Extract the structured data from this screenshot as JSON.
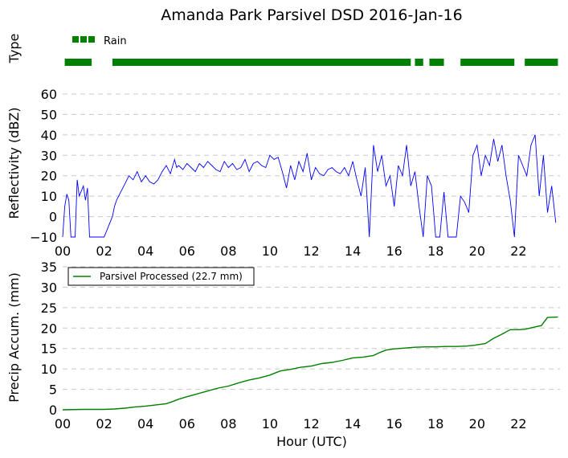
{
  "title": "Amanda Park Parsivel DSD 2016-Jan-16",
  "colors": {
    "rain": "#008000",
    "reflectivity": "#0000ff",
    "accum": "#008000",
    "grid": "#c8c8c8"
  },
  "chart_data": [
    {
      "type": "bar",
      "name": "precip_type",
      "ylabel": "Type",
      "legend": [
        "Rain"
      ],
      "legend_placement": "top-left",
      "xlim": [
        0,
        24
      ],
      "rain_intervals": [
        [
          0.1,
          1.4
        ],
        [
          2.4,
          16.8
        ],
        [
          17.0,
          17.4
        ],
        [
          17.7,
          18.4
        ],
        [
          19.2,
          21.8
        ],
        [
          22.3,
          23.9
        ]
      ]
    },
    {
      "type": "line",
      "name": "reflectivity",
      "ylabel": "Reflectivity (dBZ)",
      "xlim": [
        0,
        24
      ],
      "ylim": [
        -10,
        60
      ],
      "yticks": [
        "60",
        "50",
        "40",
        "30",
        "20",
        "10",
        "0",
        "−10"
      ],
      "grid": true,
      "series": [
        {
          "x": [
            0.0,
            0.1,
            0.2,
            0.3,
            0.4,
            0.6,
            0.7,
            0.8,
            1.0,
            1.1,
            1.2,
            1.3,
            1.4,
            1.5,
            2.0,
            2.4,
            2.5,
            2.6,
            2.8,
            3.0,
            3.2,
            3.4,
            3.6,
            3.8,
            4.0,
            4.2,
            4.4,
            4.6,
            4.8,
            5.0,
            5.2,
            5.4,
            5.5,
            5.6,
            5.8,
            6.0,
            6.2,
            6.4,
            6.6,
            6.8,
            7.0,
            7.2,
            7.4,
            7.6,
            7.8,
            8.0,
            8.2,
            8.4,
            8.6,
            8.8,
            9.0,
            9.2,
            9.4,
            9.6,
            9.8,
            10.0,
            10.2,
            10.4,
            10.6,
            10.8,
            11.0,
            11.2,
            11.4,
            11.6,
            11.8,
            12.0,
            12.2,
            12.4,
            12.6,
            12.8,
            13.0,
            13.2,
            13.4,
            13.6,
            13.8,
            14.0,
            14.2,
            14.4,
            14.6,
            14.8,
            15.0,
            15.2,
            15.4,
            15.6,
            15.8,
            16.0,
            16.2,
            16.4,
            16.6,
            16.8,
            17.0,
            17.2,
            17.4,
            17.6,
            17.8,
            18.0,
            18.2,
            18.4,
            18.6,
            19.0,
            19.2,
            19.4,
            19.6,
            19.8,
            20.0,
            20.2,
            20.4,
            20.6,
            20.8,
            21.0,
            21.2,
            21.4,
            21.6,
            21.8,
            22.0,
            22.2,
            22.4,
            22.6,
            22.8,
            23.0,
            23.2,
            23.4,
            23.6,
            23.8
          ],
          "y": [
            -10,
            5,
            11,
            8,
            -10,
            -10,
            18,
            10,
            15,
            8,
            14,
            -10,
            -10,
            -10,
            -10,
            0,
            5,
            8,
            12,
            16,
            20,
            18,
            22,
            17,
            20,
            17,
            16,
            18,
            22,
            25,
            21,
            28,
            24,
            25,
            23,
            26,
            24,
            22,
            26,
            24,
            27,
            25,
            23,
            22,
            27,
            24,
            26,
            23,
            24,
            28,
            22,
            26,
            27,
            25,
            24,
            30,
            28,
            29,
            22,
            14,
            25,
            18,
            27,
            22,
            31,
            18,
            24,
            21,
            20,
            23,
            24,
            22,
            21,
            24,
            20,
            27,
            18,
            10,
            24,
            -10,
            35,
            22,
            30,
            15,
            20,
            5,
            25,
            20,
            35,
            15,
            22,
            5,
            -10,
            20,
            15,
            -10,
            -10,
            12,
            -10,
            -10,
            10,
            7,
            2,
            30,
            35,
            20,
            30,
            25,
            38,
            27,
            35,
            20,
            8,
            -10,
            30,
            25,
            20,
            35,
            40,
            10,
            30,
            2,
            15,
            -3
          ]
        }
      ]
    },
    {
      "type": "line",
      "name": "precip_accum",
      "ylabel": "Precip Accum. (mm)",
      "xlabel": "Hour (UTC)",
      "xlim": [
        0,
        24
      ],
      "ylim": [
        0,
        35
      ],
      "xticks": [
        "00",
        "02",
        "04",
        "06",
        "08",
        "10",
        "12",
        "14",
        "16",
        "18",
        "20",
        "22"
      ],
      "yticks": [
        "35",
        "30",
        "25",
        "20",
        "15",
        "10",
        "5",
        "0"
      ],
      "grid": true,
      "legend_placement": "top-left",
      "series": [
        {
          "name": "Parsivel Processed (22.7 mm)",
          "x": [
            0,
            1,
            2,
            2.5,
            3,
            3.5,
            4,
            4.5,
            5,
            5.3,
            5.6,
            6,
            6.5,
            7,
            7.5,
            8,
            8.5,
            9,
            9.5,
            10,
            10.5,
            11,
            11.5,
            12,
            12.5,
            13,
            13.5,
            14,
            14.5,
            15,
            15.3,
            15.6,
            16,
            16.5,
            17,
            17.5,
            18,
            18.5,
            19,
            19.5,
            19.9,
            20.4,
            20.8,
            21.2,
            21.6,
            22,
            22.3,
            22.8,
            23.1,
            23.4,
            23.9
          ],
          "y": [
            0,
            0.1,
            0.1,
            0.2,
            0.4,
            0.7,
            0.9,
            1.2,
            1.5,
            2.0,
            2.6,
            3.2,
            3.9,
            4.6,
            5.3,
            5.8,
            6.6,
            7.3,
            7.8,
            8.5,
            9.5,
            9.9,
            10.4,
            10.7,
            11.3,
            11.6,
            12.1,
            12.7,
            12.9,
            13.3,
            14.0,
            14.6,
            14.9,
            15.1,
            15.3,
            15.4,
            15.4,
            15.5,
            15.5,
            15.6,
            15.8,
            16.2,
            17.5,
            18.5,
            19.6,
            19.6,
            19.7,
            20.3,
            20.6,
            22.6,
            22.7
          ]
        }
      ]
    }
  ]
}
